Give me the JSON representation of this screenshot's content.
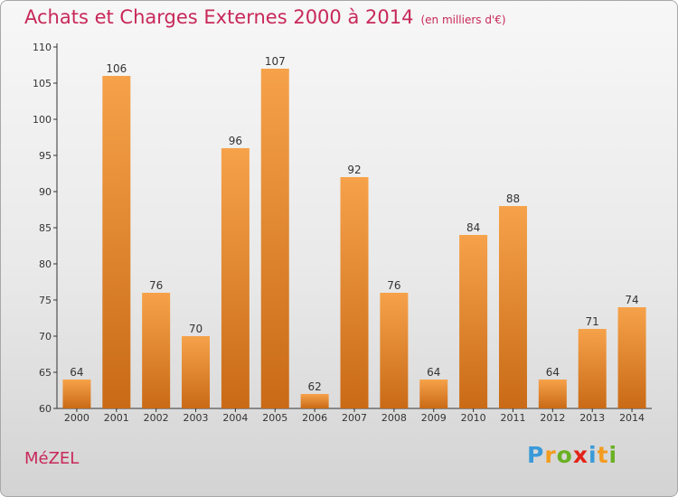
{
  "title": "Achats et Charges Externes 2000 à 2014",
  "unit": "(en milliers d'€)",
  "city": "MéZEL",
  "logo": {
    "letters": [
      "P",
      "r",
      "o",
      "x",
      "i",
      "t",
      "i"
    ],
    "colors": [
      "#3a9ad9",
      "#f39c1f",
      "#6ab023",
      "#e2231a",
      "#3a9ad9",
      "#f39c1f",
      "#6ab023"
    ]
  },
  "colors": {
    "title": "#c8285a",
    "bar_light": "#f6a24a",
    "bar_dark": "#c96a16"
  },
  "chart_data": {
    "type": "bar",
    "title": "Achats et Charges Externes 2000 à 2014",
    "subtitle": "(en milliers d'€)",
    "xlabel": "",
    "ylabel": "",
    "categories": [
      "2000",
      "2001",
      "2002",
      "2003",
      "2004",
      "2005",
      "2006",
      "2007",
      "2008",
      "2009",
      "2010",
      "2011",
      "2012",
      "2013",
      "2014"
    ],
    "values": [
      64,
      106,
      76,
      70,
      96,
      107,
      62,
      92,
      76,
      64,
      84,
      88,
      64,
      71,
      74
    ],
    "ylim": [
      60,
      110
    ],
    "yticks": [
      60,
      65,
      70,
      75,
      80,
      85,
      90,
      95,
      100,
      105,
      110
    ],
    "grid": false,
    "data_labels": true
  }
}
